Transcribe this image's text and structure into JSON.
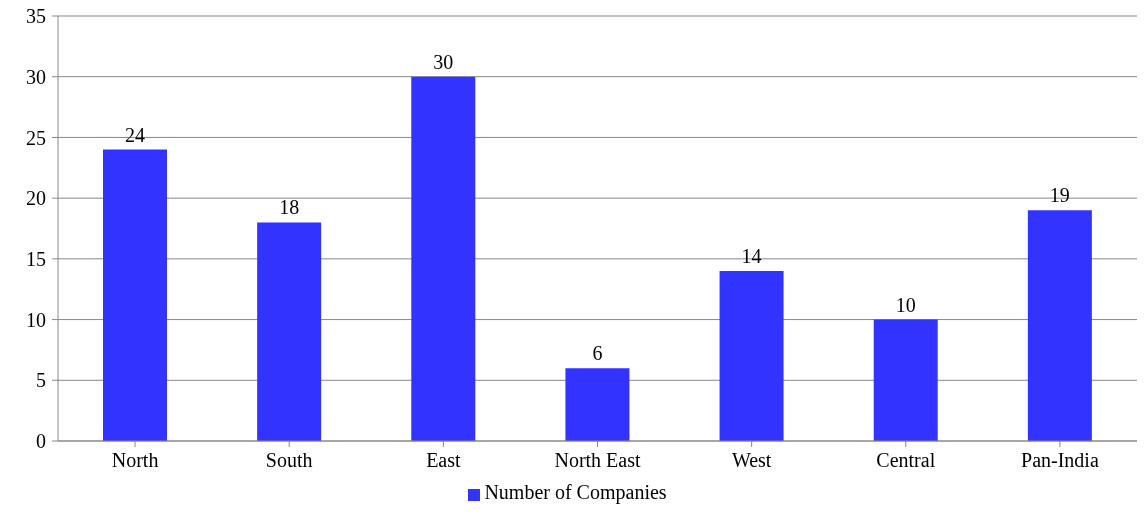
{
  "chart_data": {
    "type": "bar",
    "categories": [
      "North",
      "South",
      "East",
      "North East",
      "West",
      "Central",
      "Pan-India"
    ],
    "series": [
      {
        "name": "Number of Companies",
        "color": "#3333ff",
        "values": [
          24,
          18,
          30,
          6,
          14,
          10,
          19
        ]
      }
    ],
    "ylim": [
      0,
      35
    ],
    "yticks": [
      0,
      5,
      10,
      15,
      20,
      25,
      30,
      35
    ],
    "grid": "y",
    "legend": "bottom",
    "data_labels": true
  }
}
